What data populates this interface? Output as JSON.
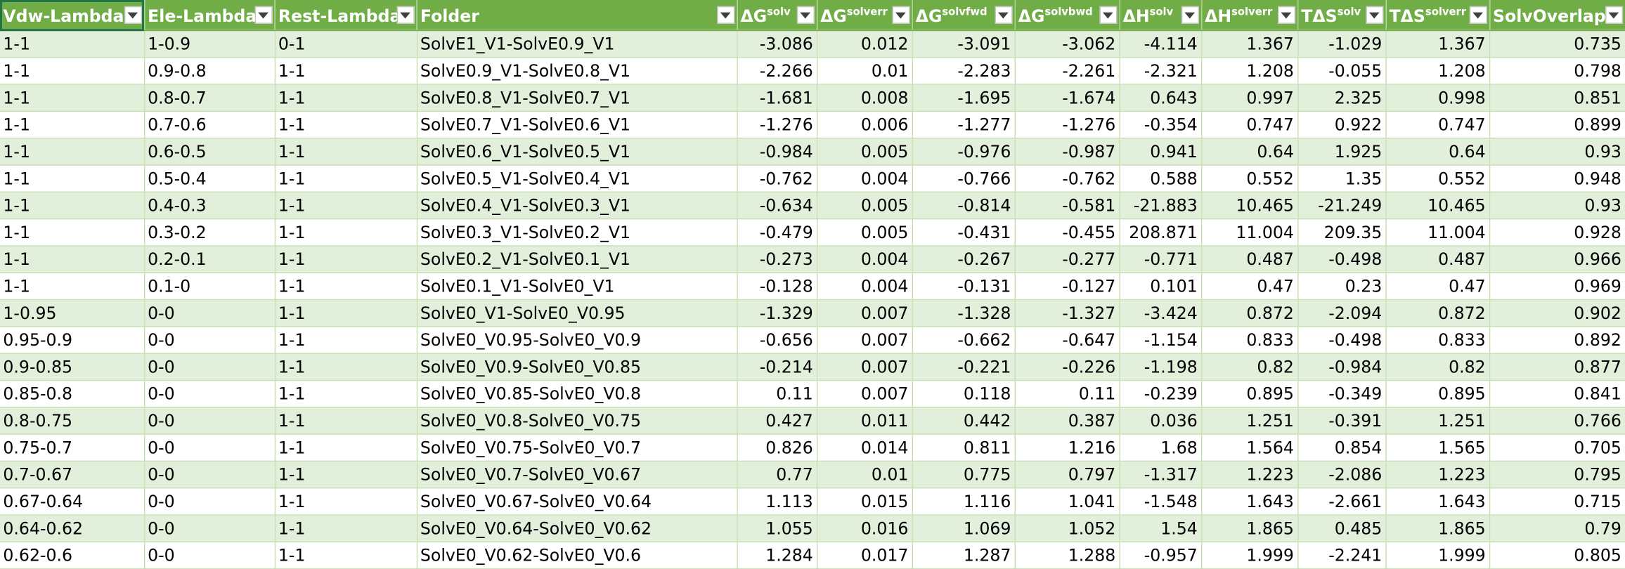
{
  "headers": [
    {
      "base": "Vdw-Lambda",
      "sup": ""
    },
    {
      "base": "Ele-Lambda",
      "sup": ""
    },
    {
      "base": "Rest-Lambda",
      "sup": ""
    },
    {
      "base": "Folder",
      "sup": ""
    },
    {
      "base": "ΔG",
      "sup": "solv"
    },
    {
      "base": "ΔG",
      "sup": "solverr"
    },
    {
      "base": "ΔG",
      "sup": "solvfwd"
    },
    {
      "base": "ΔG",
      "sup": "solvbwd"
    },
    {
      "base": "ΔH",
      "sup": "solv"
    },
    {
      "base": "ΔH",
      "sup": "solverr"
    },
    {
      "base": "TΔS",
      "sup": "solv"
    },
    {
      "base": "TΔS",
      "sup": "solverr"
    },
    {
      "base": "SolvOverlap",
      "sup": ""
    }
  ],
  "rows": [
    [
      "1-1",
      "1-0.9",
      "0-1",
      "SolvE1_V1-SolvE0.9_V1",
      "-3.086",
      "0.012",
      "-3.091",
      "-3.062",
      "-4.114",
      "1.367",
      "-1.029",
      "1.367",
      "0.735"
    ],
    [
      "1-1",
      "0.9-0.8",
      "1-1",
      "SolvE0.9_V1-SolvE0.8_V1",
      "-2.266",
      "0.01",
      "-2.283",
      "-2.261",
      "-2.321",
      "1.208",
      "-0.055",
      "1.208",
      "0.798"
    ],
    [
      "1-1",
      "0.8-0.7",
      "1-1",
      "SolvE0.8_V1-SolvE0.7_V1",
      "-1.681",
      "0.008",
      "-1.695",
      "-1.674",
      "0.643",
      "0.997",
      "2.325",
      "0.998",
      "0.851"
    ],
    [
      "1-1",
      "0.7-0.6",
      "1-1",
      "SolvE0.7_V1-SolvE0.6_V1",
      "-1.276",
      "0.006",
      "-1.277",
      "-1.276",
      "-0.354",
      "0.747",
      "0.922",
      "0.747",
      "0.899"
    ],
    [
      "1-1",
      "0.6-0.5",
      "1-1",
      "SolvE0.6_V1-SolvE0.5_V1",
      "-0.984",
      "0.005",
      "-0.976",
      "-0.987",
      "0.941",
      "0.64",
      "1.925",
      "0.64",
      "0.93"
    ],
    [
      "1-1",
      "0.5-0.4",
      "1-1",
      "SolvE0.5_V1-SolvE0.4_V1",
      "-0.762",
      "0.004",
      "-0.766",
      "-0.762",
      "0.588",
      "0.552",
      "1.35",
      "0.552",
      "0.948"
    ],
    [
      "1-1",
      "0.4-0.3",
      "1-1",
      "SolvE0.4_V1-SolvE0.3_V1",
      "-0.634",
      "0.005",
      "-0.814",
      "-0.581",
      "-21.883",
      "10.465",
      "-21.249",
      "10.465",
      "0.93"
    ],
    [
      "1-1",
      "0.3-0.2",
      "1-1",
      "SolvE0.3_V1-SolvE0.2_V1",
      "-0.479",
      "0.005",
      "-0.431",
      "-0.455",
      "208.871",
      "11.004",
      "209.35",
      "11.004",
      "0.928"
    ],
    [
      "1-1",
      "0.2-0.1",
      "1-1",
      "SolvE0.2_V1-SolvE0.1_V1",
      "-0.273",
      "0.004",
      "-0.267",
      "-0.277",
      "-0.771",
      "0.487",
      "-0.498",
      "0.487",
      "0.966"
    ],
    [
      "1-1",
      "0.1-0",
      "1-1",
      "SolvE0.1_V1-SolvE0_V1",
      "-0.128",
      "0.004",
      "-0.131",
      "-0.127",
      "0.101",
      "0.47",
      "0.23",
      "0.47",
      "0.969"
    ],
    [
      "1-0.95",
      "0-0",
      "1-1",
      "SolvE0_V1-SolvE0_V0.95",
      "-1.329",
      "0.007",
      "-1.328",
      "-1.327",
      "-3.424",
      "0.872",
      "-2.094",
      "0.872",
      "0.902"
    ],
    [
      "0.95-0.9",
      "0-0",
      "1-1",
      "SolvE0_V0.95-SolvE0_V0.9",
      "-0.656",
      "0.007",
      "-0.662",
      "-0.647",
      "-1.154",
      "0.833",
      "-0.498",
      "0.833",
      "0.892"
    ],
    [
      "0.9-0.85",
      "0-0",
      "1-1",
      "SolvE0_V0.9-SolvE0_V0.85",
      "-0.214",
      "0.007",
      "-0.221",
      "-0.226",
      "-1.198",
      "0.82",
      "-0.984",
      "0.82",
      "0.877"
    ],
    [
      "0.85-0.8",
      "0-0",
      "1-1",
      "SolvE0_V0.85-SolvE0_V0.8",
      "0.11",
      "0.007",
      "0.118",
      "0.11",
      "-0.239",
      "0.895",
      "-0.349",
      "0.895",
      "0.841"
    ],
    [
      "0.8-0.75",
      "0-0",
      "1-1",
      "SolvE0_V0.8-SolvE0_V0.75",
      "0.427",
      "0.011",
      "0.442",
      "0.387",
      "0.036",
      "1.251",
      "-0.391",
      "1.251",
      "0.766"
    ],
    [
      "0.75-0.7",
      "0-0",
      "1-1",
      "SolvE0_V0.75-SolvE0_V0.7",
      "0.826",
      "0.014",
      "0.811",
      "1.216",
      "1.68",
      "1.564",
      "0.854",
      "1.565",
      "0.705"
    ],
    [
      "0.7-0.67",
      "0-0",
      "1-1",
      "SolvE0_V0.7-SolvE0_V0.67",
      "0.77",
      "0.01",
      "0.775",
      "0.797",
      "-1.317",
      "1.223",
      "-2.086",
      "1.223",
      "0.795"
    ],
    [
      "0.67-0.64",
      "0-0",
      "1-1",
      "SolvE0_V0.67-SolvE0_V0.64",
      "1.113",
      "0.015",
      "1.116",
      "1.041",
      "-1.548",
      "1.643",
      "-2.661",
      "1.643",
      "0.715"
    ],
    [
      "0.64-0.62",
      "0-0",
      "1-1",
      "SolvE0_V0.64-SolvE0_V0.62",
      "1.055",
      "0.016",
      "1.069",
      "1.052",
      "1.54",
      "1.865",
      "0.485",
      "1.865",
      "0.79"
    ],
    [
      "0.62-0.6",
      "0-0",
      "1-1",
      "SolvE0_V0.62-SolvE0_V0.6",
      "1.284",
      "0.017",
      "1.287",
      "1.288",
      "-0.957",
      "1.999",
      "-2.241",
      "1.999",
      "0.805"
    ]
  ],
  "colors": {
    "header_bg": "#70ad47",
    "band": "#e2efda",
    "grid": "#c6e0b4"
  },
  "icons": {
    "filter": "chevron-down-icon"
  }
}
